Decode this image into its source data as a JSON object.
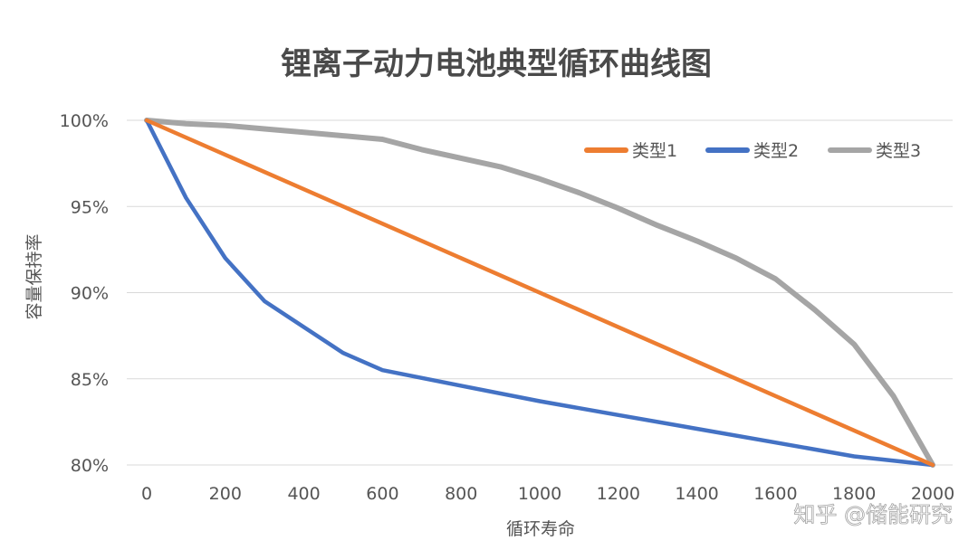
{
  "chart_data": {
    "type": "line",
    "title": "锂离子动力电池典型循环曲线图",
    "xlabel": "循环寿命",
    "ylabel": "容量保持率",
    "xlim": [
      0,
      2000
    ],
    "ylim": [
      80,
      100
    ],
    "x_ticks": [
      "0",
      "200",
      "400",
      "600",
      "800",
      "1000",
      "1200",
      "1400",
      "1600",
      "1800",
      "2000"
    ],
    "y_ticks": [
      "80%",
      "85%",
      "90%",
      "95%",
      "100%"
    ],
    "grid": true,
    "legend_position": "top-right",
    "series": [
      {
        "name": "类型1",
        "color": "#ED7D31",
        "points": [
          [
            0,
            100
          ],
          [
            2000,
            80
          ]
        ]
      },
      {
        "name": "类型2",
        "color": "#4472C4",
        "points": [
          [
            0,
            100
          ],
          [
            100,
            95.5
          ],
          [
            200,
            92
          ],
          [
            300,
            89.5
          ],
          [
            400,
            88
          ],
          [
            500,
            86.5
          ],
          [
            600,
            85.5
          ],
          [
            800,
            84.6
          ],
          [
            1000,
            83.7
          ],
          [
            1200,
            82.9
          ],
          [
            1400,
            82.1
          ],
          [
            1600,
            81.3
          ],
          [
            1800,
            80.5
          ],
          [
            2000,
            80
          ]
        ]
      },
      {
        "name": "类型3",
        "color": "#A5A5A5",
        "points": [
          [
            0,
            100
          ],
          [
            100,
            99.8
          ],
          [
            200,
            99.7
          ],
          [
            300,
            99.5
          ],
          [
            400,
            99.3
          ],
          [
            500,
            99.1
          ],
          [
            600,
            98.9
          ],
          [
            700,
            98.3
          ],
          [
            800,
            97.8
          ],
          [
            900,
            97.3
          ],
          [
            1000,
            96.6
          ],
          [
            1100,
            95.8
          ],
          [
            1200,
            94.9
          ],
          [
            1300,
            93.9
          ],
          [
            1400,
            93
          ],
          [
            1500,
            92
          ],
          [
            1600,
            90.8
          ],
          [
            1700,
            89
          ],
          [
            1800,
            87
          ],
          [
            1900,
            84
          ],
          [
            2000,
            80
          ]
        ]
      }
    ]
  },
  "watermark": "知乎 @储能研究"
}
